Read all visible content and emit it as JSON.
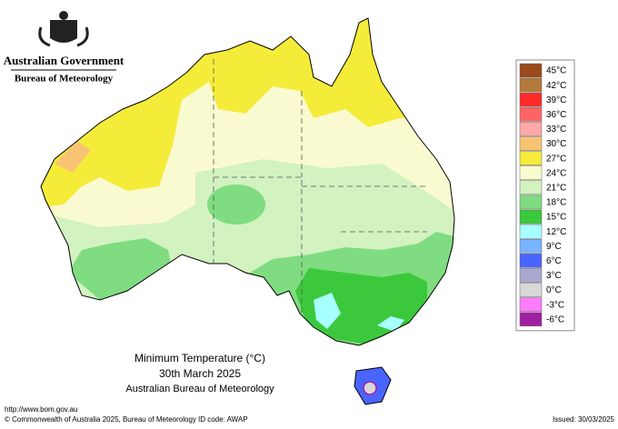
{
  "header": {
    "government": "Australian Government",
    "agency": "Bureau of Meteorology"
  },
  "map": {
    "title": "Minimum Temperature (°C)",
    "date": "30th March 2025",
    "source": "Australian Bureau of Meteorology"
  },
  "legend": [
    {
      "label": "45°C",
      "color": "#9b4a1c"
    },
    {
      "label": "42°C",
      "color": "#b47a3c"
    },
    {
      "label": "39°C",
      "color": "#ff2a2a"
    },
    {
      "label": "36°C",
      "color": "#ff6464"
    },
    {
      "label": "33°C",
      "color": "#ffa8a8"
    },
    {
      "label": "30°C",
      "color": "#f8c474"
    },
    {
      "label": "27°C",
      "color": "#f5ec3a"
    },
    {
      "label": "24°C",
      "color": "#fafad0"
    },
    {
      "label": "21°C",
      "color": "#d2f2c0"
    },
    {
      "label": "18°C",
      "color": "#80dc80"
    },
    {
      "label": "15°C",
      "color": "#3cc83c"
    },
    {
      "label": "12°C",
      "color": "#a8ffff"
    },
    {
      "label": "9°C",
      "color": "#78b4ff"
    },
    {
      "label": "6°C",
      "color": "#4a64ff"
    },
    {
      "label": "3°C",
      "color": "#a8a8d0"
    },
    {
      "label": "0°C",
      "color": "#d8d8d8"
    },
    {
      "label": "-3°C",
      "color": "#ff7cff"
    },
    {
      "label": "-6°C",
      "color": "#a020a0"
    }
  ],
  "footer": {
    "url": "http://www.bom.gov.au",
    "copyright": "© Commonwealth of Australia 2025, Bureau of Meteorology",
    "id_code": "ID code: AWAP",
    "issued": "Issued: 30/03/2025"
  }
}
